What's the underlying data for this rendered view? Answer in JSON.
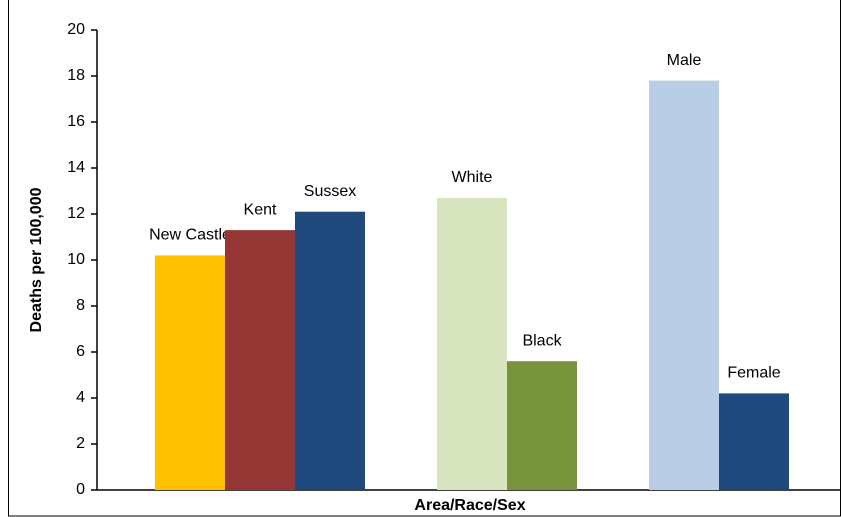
{
  "chart_data": {
    "type": "bar",
    "y_label": "Deaths per 100,000",
    "x_label": "Area/Race/Sex",
    "groups": [
      {
        "categories": [
          "New Castle",
          "Kent",
          "Sussex"
        ],
        "values": [
          10.2,
          11.3,
          12.1
        ],
        "colors": [
          "#ffc000",
          "#953735",
          "#1f497d"
        ]
      },
      {
        "categories": [
          "White",
          "Black"
        ],
        "values": [
          12.7,
          5.6
        ],
        "colors": [
          "#d7e4bd",
          "#77933c"
        ]
      },
      {
        "categories": [
          "Male",
          "Female"
        ],
        "values": [
          17.8,
          4.2
        ],
        "colors": [
          "#b9cde5",
          "#1f497d"
        ]
      }
    ],
    "ylim": [
      0,
      20
    ],
    "yticks": [
      0,
      2,
      4,
      6,
      8,
      10,
      12,
      14,
      16,
      18,
      20
    ]
  }
}
